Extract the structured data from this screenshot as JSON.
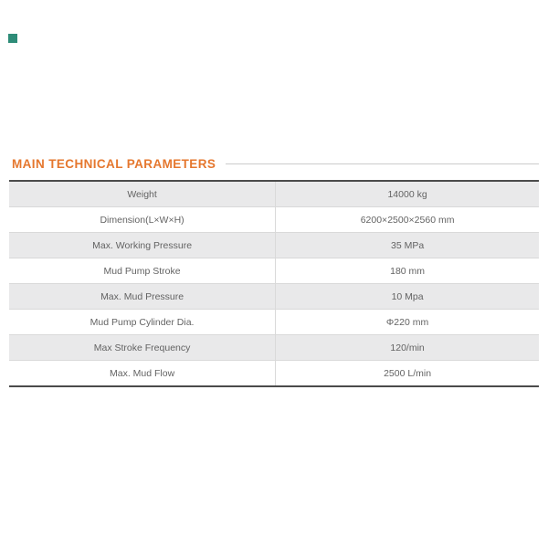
{
  "brand_mark": {
    "color": "#2E8C78"
  },
  "header": {
    "title": "MAIN TECHNICAL PARAMETERS"
  },
  "colors": {
    "accent_orange": "#E5772E",
    "rule_line": "#CBCBCB",
    "row_stripe": "#E9E9EA",
    "table_border_dark": "#4B4B4B",
    "table_border_light": "#D9D9D9",
    "text": "#636363"
  },
  "table": {
    "rows": [
      {
        "label": "Weight",
        "value": "14000 kg"
      },
      {
        "label": "Dimension(L×W×H)",
        "value": "6200×2500×2560 mm"
      },
      {
        "label": "Max. Working Pressure",
        "value": "35 MPa"
      },
      {
        "label": "Mud Pump Stroke",
        "value": "180 mm"
      },
      {
        "label": "Max. Mud Pressure",
        "value": "10 Mpa"
      },
      {
        "label": "Mud Pump Cylinder Dia.",
        "value": "Φ220 mm"
      },
      {
        "label": "Max Stroke Frequency",
        "value": "120/min"
      },
      {
        "label": "Max. Mud Flow",
        "value": "2500 L/min"
      }
    ]
  }
}
